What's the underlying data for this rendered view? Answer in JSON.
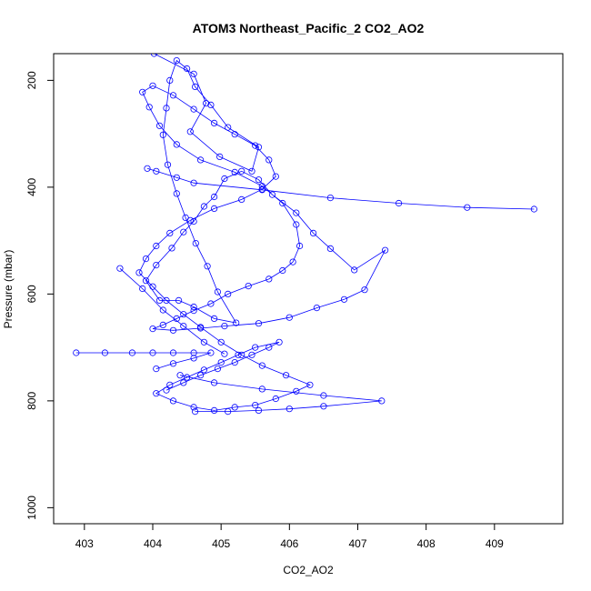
{
  "chart_data": {
    "type": "line",
    "title": "ATOM3 Northeast_Pacific_2 CO2_AO2",
    "xlabel": "CO2_AO2",
    "ylabel": "Pressure (mbar)",
    "xlim": [
      402.55,
      410.0
    ],
    "ylim": [
      1030,
      150
    ],
    "y_reversed": true,
    "xticks": [
      "403",
      "404",
      "405",
      "406",
      "407",
      "408",
      "409"
    ],
    "yticks": [
      "200",
      "400",
      "600",
      "800",
      "1000"
    ],
    "grid": false,
    "series_color": "#0000ff",
    "series": [
      {
        "x": [
          404.02,
          404.6,
          404.78,
          404.55,
          404.98,
          405.45,
          405.55,
          405.1,
          404.85,
          404.62,
          404.5,
          404.35,
          404.25,
          404.2,
          404.15,
          404.22,
          404.35,
          404.48,
          404.63,
          404.8,
          404.95,
          405.22,
          404.9,
          404.6,
          404.38,
          404.1,
          403.9,
          404.05,
          404.28,
          404.45,
          404.6,
          404.75,
          404.9,
          405.05,
          405.3,
          405.55,
          405.75,
          406.1,
          406.35,
          406.6,
          406.95,
          407.4,
          407.1,
          406.8,
          406.4,
          406.0,
          405.55,
          405.05,
          404.7,
          404.3,
          404.0,
          404.15,
          404.35,
          404.6,
          404.85,
          405.1,
          405.4,
          405.7,
          405.9,
          406.05,
          406.15,
          406.1,
          405.9,
          405.6,
          405.2,
          404.7,
          404.35,
          404.1,
          403.95,
          403.85,
          404.0,
          404.3,
          404.6,
          404.9,
          405.2,
          405.5,
          405.7,
          405.8,
          405.6,
          405.3,
          404.9,
          404.55,
          404.25,
          404.05,
          403.9,
          403.8,
          404.0,
          404.2,
          404.45,
          404.7,
          405.0,
          405.3,
          405.6,
          405.95,
          406.3,
          406.1,
          405.8,
          405.5,
          405.2,
          404.9,
          404.6,
          404.3,
          404.05,
          404.25,
          404.5,
          404.75,
          405.0,
          405.25,
          405.5,
          405.85,
          405.7,
          405.45,
          405.2,
          404.95,
          404.7,
          404.45,
          404.2
        ],
        "y": [
          150,
          188,
          243,
          296,
          343,
          370,
          325,
          288,
          246,
          212,
          178,
          163,
          200,
          252,
          302,
          358,
          412,
          457,
          505,
          548,
          596,
          654,
          646,
          624,
          612,
          612,
          575,
          546,
          514,
          484,
          464,
          436,
          418,
          384,
          370,
          386,
          414,
          448,
          486,
          515,
          555,
          518,
          592,
          610,
          626,
          644,
          655,
          660,
          664,
          668,
          665,
          658,
          646,
          631,
          618,
          600,
          585,
          572,
          556,
          540,
          510,
          470,
          430,
          398,
          372,
          349,
          320,
          285,
          250,
          222,
          210,
          228,
          254,
          280,
          301,
          322,
          349,
          380,
          404,
          423,
          440,
          462,
          486,
          510,
          534,
          560,
          586,
          612,
          638,
          662,
          690,
          714,
          734,
          752,
          770,
          782,
          796,
          808,
          812,
          818,
          812,
          800,
          786,
          770,
          756,
          742,
          728,
          714,
          700,
          690,
          700,
          714,
          728,
          740,
          752,
          766,
          780
        ]
      },
      {
        "x": [
          402.88,
          403.3,
          403.7,
          404.0,
          404.3,
          404.6,
          404.85,
          404.6,
          404.3,
          404.05
        ],
        "y": [
          710,
          710,
          710,
          710,
          710,
          710,
          710,
          720,
          730,
          740
        ]
      },
      {
        "x": [
          403.52,
          403.85,
          404.15,
          404.45,
          404.75,
          405.05
        ],
        "y": [
          552,
          590,
          630,
          660,
          690,
          712
        ]
      },
      {
        "x": [
          409.58,
          408.6,
          407.6,
          406.6,
          405.6,
          404.6,
          404.35,
          404.05,
          403.92
        ],
        "y": [
          441,
          438,
          430,
          420,
          405,
          392,
          382,
          370,
          365
        ]
      },
      {
        "x": [
          404.62,
          405.1,
          405.55,
          406.0,
          406.5,
          407.35,
          406.5,
          405.6,
          404.9,
          404.4
        ],
        "y": [
          820,
          820,
          818,
          815,
          810,
          800,
          790,
          778,
          766,
          752
        ]
      }
    ]
  }
}
